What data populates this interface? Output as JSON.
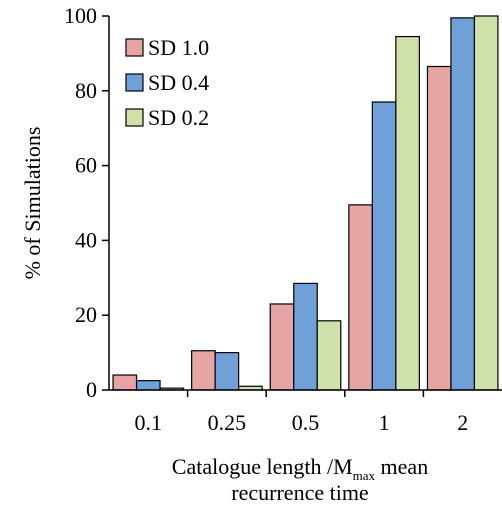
{
  "chart_data": {
    "type": "bar",
    "title": "",
    "categories": [
      "0.1",
      "0.25",
      "0.5",
      "1",
      "2"
    ],
    "series": [
      {
        "name": "SD 1.0",
        "color": "#e6a4a4",
        "values": [
          4,
          10.5,
          23,
          49.5,
          86.5
        ]
      },
      {
        "name": "SD 0.4",
        "color": "#6fa0d8",
        "values": [
          2.5,
          10,
          28.5,
          77,
          99.5
        ]
      },
      {
        "name": "SD 0.2",
        "color": "#cfe0a8",
        "values": [
          0.5,
          1,
          18.5,
          94.5,
          100
        ]
      }
    ],
    "ylabel": "% of Simulations",
    "xlabel": {
      "line1_prefix": "Catalogue length /M",
      "line1_subscript": "max",
      "line1_suffix": " mean",
      "line2": "recurrence time"
    },
    "ylim": [
      0,
      100
    ],
    "yticks": [
      "0",
      "20",
      "40",
      "60",
      "80",
      "100"
    ],
    "ytick_values": [
      0,
      20,
      40,
      60,
      80,
      100
    ],
    "grid": false,
    "legend_position": "top-left"
  }
}
